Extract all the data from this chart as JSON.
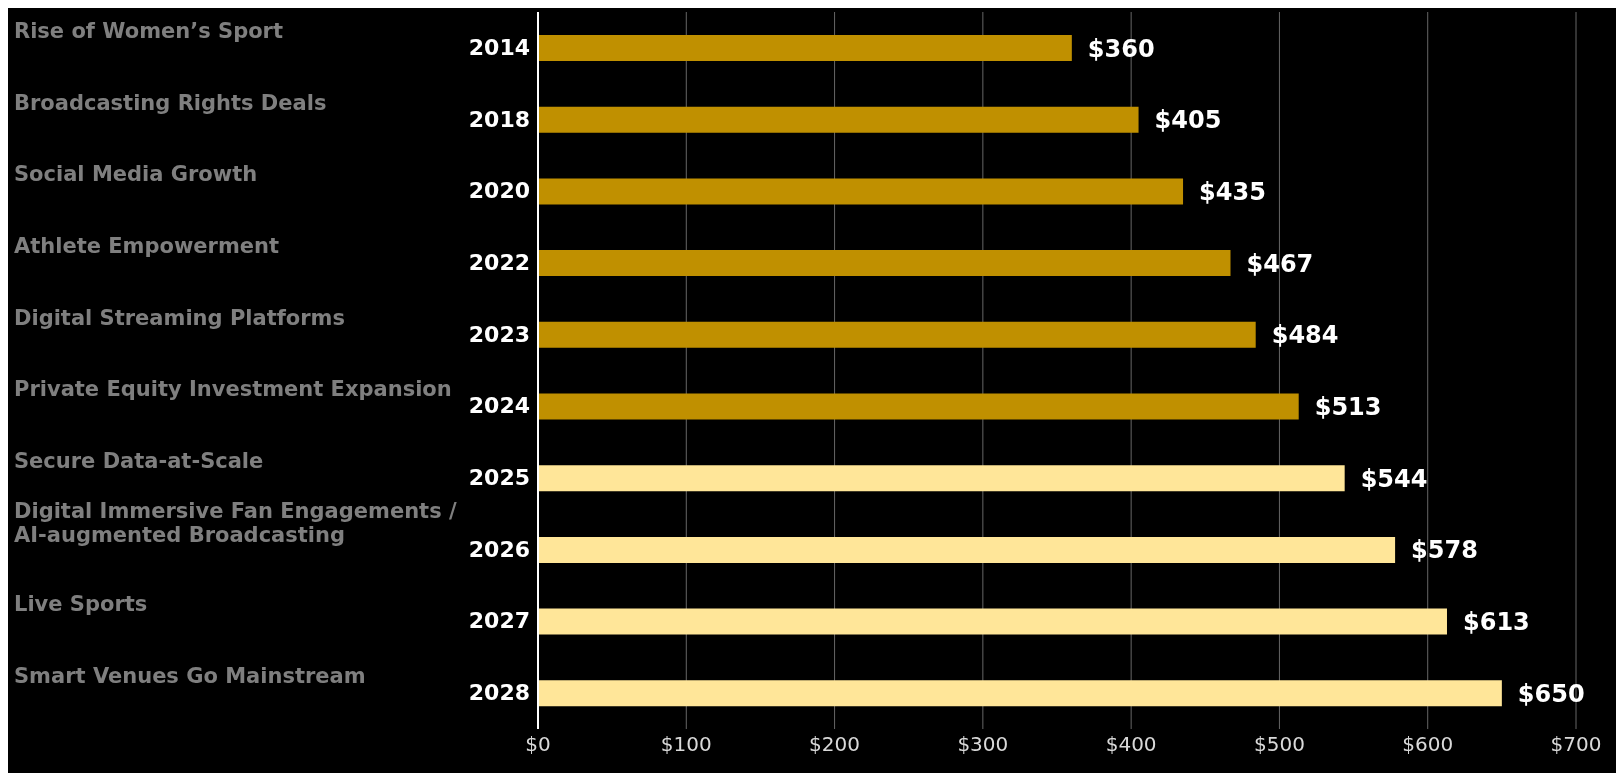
{
  "chart_data": {
    "type": "bar",
    "orientation": "horizontal",
    "categories": [
      "2014",
      "2018",
      "2020",
      "2022",
      "2023",
      "2024",
      "2025",
      "2026",
      "2027",
      "2028"
    ],
    "values": [
      360,
      405,
      435,
      467,
      484,
      513,
      544,
      578,
      613,
      650
    ],
    "value_labels": [
      "$360",
      "$405",
      "$435",
      "$467",
      "$484",
      "$513",
      "$544",
      "$578",
      "$613",
      "$650"
    ],
    "colors": [
      "#c09000",
      "#c09000",
      "#c09000",
      "#c09000",
      "#c09000",
      "#c09000",
      "#ffe699",
      "#ffe699",
      "#ffe699",
      "#ffe699"
    ],
    "xlim": [
      0,
      700
    ],
    "xticks": [
      {
        "value": 0,
        "label": "$0"
      },
      {
        "value": 100,
        "label": "$100"
      },
      {
        "value": 200,
        "label": "$200"
      },
      {
        "value": 300,
        "label": "$300"
      },
      {
        "value": 400,
        "label": "$400"
      },
      {
        "value": 500,
        "label": "$500"
      },
      {
        "value": 600,
        "label": "$600"
      },
      {
        "value": 700,
        "label": "$700"
      }
    ],
    "grid": "x",
    "annotations": [
      "Rise of Women’s Sport",
      "Broadcasting Rights Deals",
      "Social Media Growth",
      "Athlete Empowerment",
      "Digital Streaming Platforms",
      "Private Equity Investment Expansion",
      "Secure Data-at-Scale",
      "Digital Immersive Fan Engagements / AI-augmented Broadcasting",
      "Live Sports",
      "Smart Venues Go Mainstream"
    ]
  }
}
